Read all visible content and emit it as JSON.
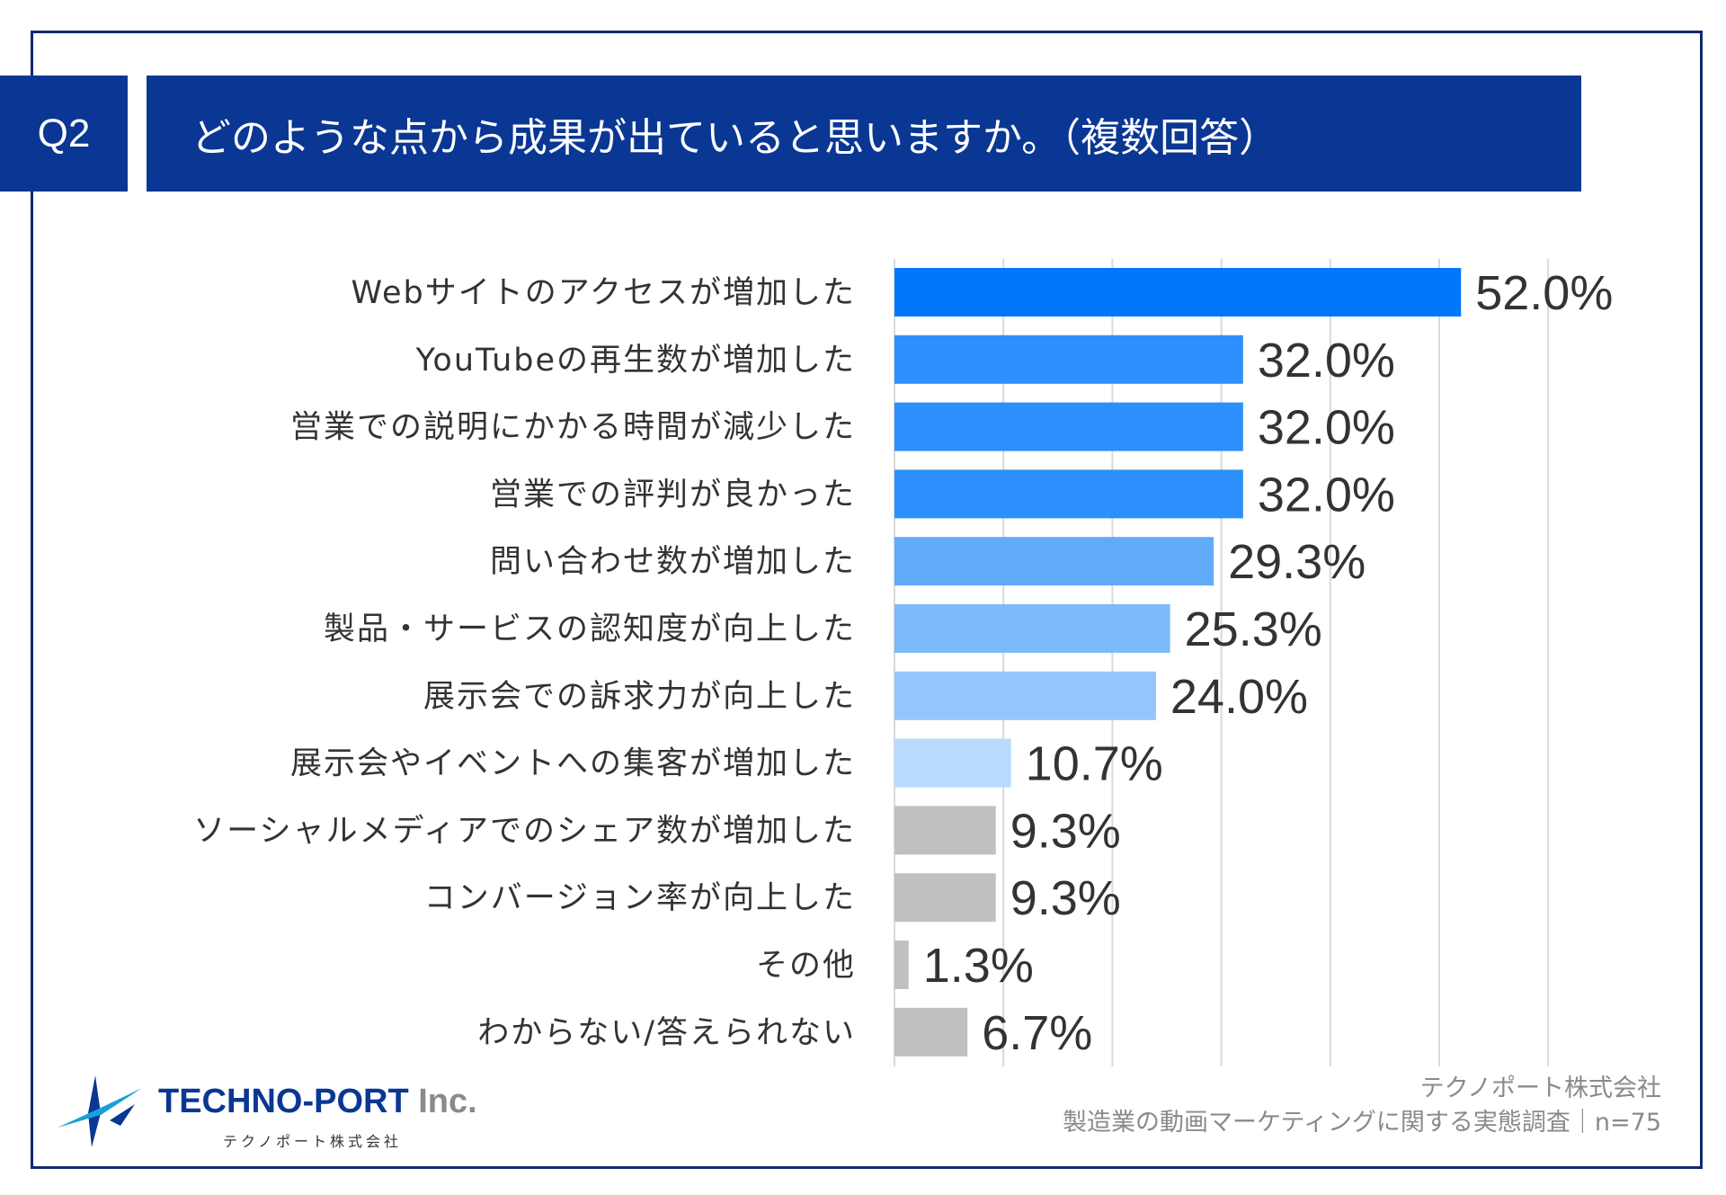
{
  "header": {
    "question_id": "Q2",
    "title": "どのような点から成果が出ていると思いますか。（複数回答）"
  },
  "chart_data": {
    "type": "bar",
    "orientation": "horizontal",
    "title": "どのような点から成果が出ていると思いますか。（複数回答）",
    "xlabel": "",
    "ylabel": "",
    "xlim": [
      0,
      60
    ],
    "grid": true,
    "categories": [
      "Webサイトのアクセスが増加した",
      "YouTubeの再生数が増加した",
      "営業での説明にかかる時間が減少した",
      "営業での評判が良かった",
      "問い合わせ数が増加した",
      "製品・サービスの認知度が向上した",
      "展示会での訴求力が向上した",
      "展示会やイベントへの集客が増加した",
      "ソーシャルメディアでのシェア数が増加した",
      "コンバージョン率が向上した",
      "その他",
      "わからない/答えられない"
    ],
    "values": [
      52.0,
      32.0,
      32.0,
      32.0,
      29.3,
      25.3,
      24.0,
      10.7,
      9.3,
      9.3,
      1.3,
      6.7
    ],
    "value_labels": [
      "52.0%",
      "32.0%",
      "32.0%",
      "32.0%",
      "29.3%",
      "25.3%",
      "24.0%",
      "10.7%",
      "9.3%",
      "9.3%",
      "1.3%",
      "6.7%"
    ],
    "bar_colors": [
      "#0277fb",
      "#2c8ffb",
      "#2c8ffb",
      "#2c8ffb",
      "#62aafa",
      "#7cbafb",
      "#94c6fb",
      "#b8daff",
      "#c0c0c0",
      "#c0c0c0",
      "#c0c0c0",
      "#c0c0c0"
    ],
    "gridline_color": "#d9d9d9"
  },
  "footer": {
    "source_line1": "テクノポート株式会社",
    "source_line2": "製造業の動画マーケティングに関する実態調査｜n=75"
  },
  "logo": {
    "name_part1": "TECHNO-PORT",
    "name_part2": " Inc.",
    "subtitle": "テクノポート株式会社",
    "colors": {
      "primary": "#0a3794",
      "accent": "#1a9fd8"
    }
  }
}
